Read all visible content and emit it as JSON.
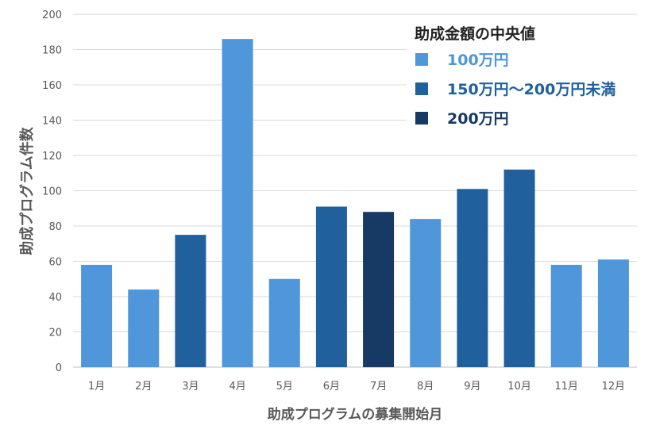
{
  "chart_data": {
    "type": "bar",
    "title": "",
    "xlabel": "助成プログラムの募集開始月",
    "ylabel": "助成プログラム件数",
    "ylim": [
      0,
      200
    ],
    "yticks": [
      0,
      20,
      40,
      60,
      80,
      100,
      120,
      140,
      160,
      180,
      200
    ],
    "grid": true,
    "categories": [
      "1月",
      "2月",
      "3月",
      "4月",
      "5月",
      "6月",
      "7月",
      "8月",
      "9月",
      "10月",
      "11月",
      "12月"
    ],
    "values": [
      58,
      44,
      75,
      186,
      50,
      91,
      88,
      84,
      101,
      112,
      58,
      61
    ],
    "value_group": [
      0,
      0,
      1,
      0,
      0,
      1,
      2,
      0,
      1,
      1,
      0,
      0
    ],
    "legend": {
      "title": "助成金額の中央値",
      "placement": "top-right",
      "entries": [
        {
          "label": "100万円",
          "color": "#4f96db"
        },
        {
          "label": "150万円～200万円未満",
          "color": "#20609c"
        },
        {
          "label": "200万円",
          "color": "#163a63"
        }
      ]
    }
  }
}
